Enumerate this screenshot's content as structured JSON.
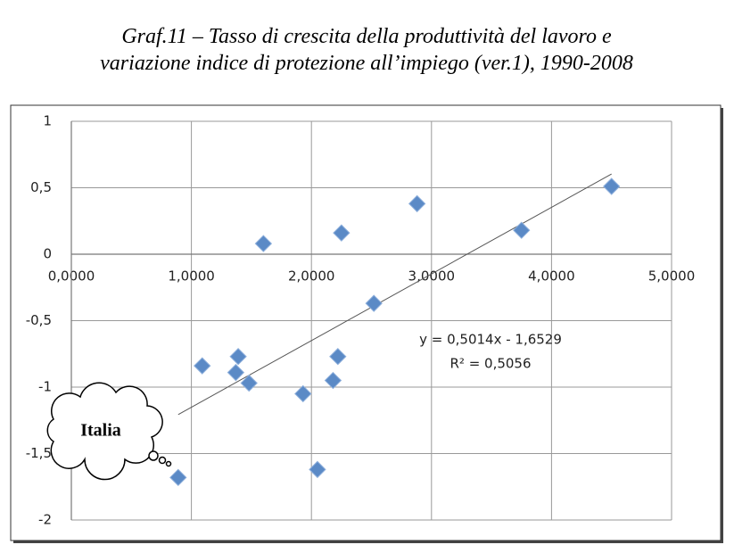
{
  "chart_data": {
    "type": "scatter",
    "title": [
      "Graf.11 – Tasso di crescita della  produttività del lavoro e",
      "variazione indice di protezione all’impiego (ver.1), 1990-2008"
    ],
    "x": [
      0.89,
      1.09,
      1.37,
      1.39,
      1.48,
      1.6,
      1.93,
      2.05,
      2.18,
      2.22,
      2.25,
      2.52,
      2.88,
      3.75,
      4.5
    ],
    "values": [
      -1.68,
      -0.84,
      -0.89,
      -0.77,
      -0.97,
      0.08,
      -1.05,
      -1.62,
      -0.95,
      -0.77,
      0.16,
      -0.37,
      0.38,
      0.18,
      0.51
    ],
    "color": "#5b8ac6",
    "xlim": [
      0,
      5
    ],
    "ylim": [
      -2,
      1
    ],
    "xticks": [
      {
        "value": 0,
        "label": "0,0000"
      },
      {
        "value": 1,
        "label": "1,0000"
      },
      {
        "value": 2,
        "label": "2,0000"
      },
      {
        "value": 3,
        "label": "3,0000"
      },
      {
        "value": 4,
        "label": "4,0000"
      },
      {
        "value": 5,
        "label": "5,0000"
      }
    ],
    "yticks": [
      1,
      {
        "value": 0.5,
        "label": "0,5"
      },
      0,
      {
        "value": -0.5,
        "label": "-0,5"
      },
      -1,
      {
        "value": -1.5,
        "label": "-1,5"
      },
      -2
    ],
    "grid": true,
    "trendline": {
      "slope": 0.5014,
      "intercept": -1.6529,
      "label": "y = 0,5014x - 1,6529",
      "r2_label": "R² = 0,5056"
    },
    "annotation": "Italia"
  }
}
